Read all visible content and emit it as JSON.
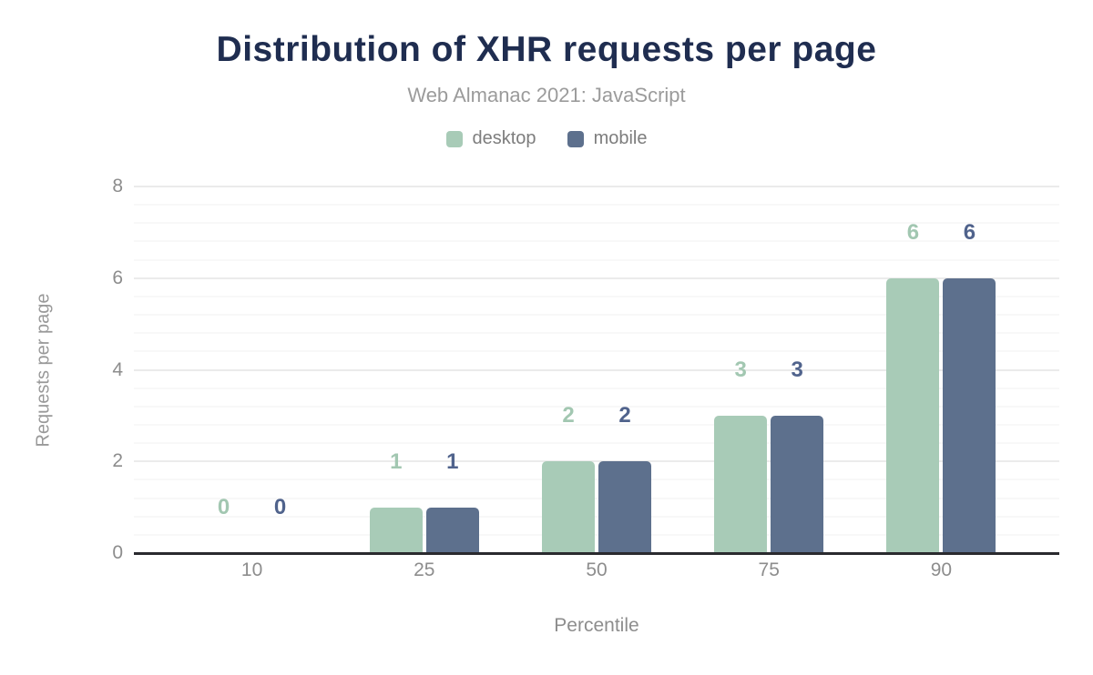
{
  "header": {
    "title": "Distribution of XHR requests per page",
    "subtitle": "Web Almanac 2021: JavaScript"
  },
  "legend": [
    {
      "label": "desktop",
      "color": "#a8cbb7"
    },
    {
      "label": "mobile",
      "color": "#5d708d"
    }
  ],
  "axes": {
    "xlabel": "Percentile",
    "ylabel": "Requests per page"
  },
  "colors": {
    "title": "#1f2d50",
    "subtitle": "#9b9b9b",
    "axis_line": "#2a2a2e",
    "tick_label": "#8d8d8d",
    "grid_major": "#ebebeb",
    "grid_minor": "#f8f8f8",
    "desktop_bar": "#a8cbb7",
    "mobile_bar": "#5d708d",
    "desktop_data_label": "#a2c7b1",
    "mobile_data_label": "#50638c"
  },
  "chart_data": {
    "type": "bar",
    "title": "Distribution of XHR requests per page",
    "subtitle": "Web Almanac 2021: JavaScript",
    "categories": [
      "10",
      "25",
      "50",
      "75",
      "90"
    ],
    "series": [
      {
        "name": "desktop",
        "color": "#a8cbb7",
        "label_color": "#a2c7b1",
        "values": [
          0,
          1,
          2,
          3,
          6
        ]
      },
      {
        "name": "mobile",
        "color": "#5d708d",
        "label_color": "#50638c",
        "values": [
          0,
          1,
          2,
          3,
          6
        ]
      }
    ],
    "xlabel": "Percentile",
    "ylabel": "Requests per page",
    "ylim": [
      0,
      8
    ],
    "yticks": [
      0,
      2,
      4,
      6,
      8
    ],
    "minor_tick_interval": 0.4,
    "grid": true,
    "legend_position": "top",
    "data_labels": true
  }
}
